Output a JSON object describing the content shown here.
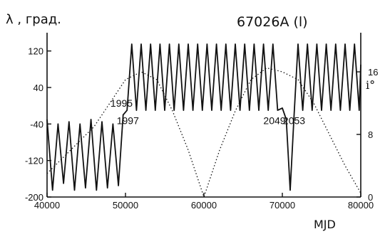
{
  "chart_data": {
    "type": "line",
    "title": "67026A (l)",
    "ylabel": "λ , град.",
    "xlabel": "MJD",
    "y2label": "i°",
    "xlim": [
      40000,
      80000
    ],
    "ylim": [
      -200,
      160
    ],
    "y2lim": [
      0,
      21
    ],
    "x_ticks": [
      40000,
      50000,
      60000,
      70000,
      80000
    ],
    "x_tick_labels": [
      "40000",
      "50000",
      "60000",
      "70000",
      "80000"
    ],
    "y_ticks": [
      120,
      40,
      -40,
      -120,
      -200
    ],
    "y_tick_labels": [
      "120",
      "40",
      "-40",
      "-120",
      "-200"
    ],
    "y2_ticks": [
      0,
      8,
      16
    ],
    "y2_tick_labels": [
      "0",
      "8",
      "16"
    ],
    "annotations": [
      {
        "text": "1995",
        "x": 49500,
        "y": -2
      },
      {
        "text": "1997",
        "x": 50300,
        "y": -40
      },
      {
        "text": "2049",
        "x": 69000,
        "y": -40
      },
      {
        "text": "2053",
        "x": 71500,
        "y": -40
      }
    ],
    "grid": false,
    "series": [
      {
        "style": "solid",
        "axis": "left",
        "x": [
          40000,
          40700,
          41400,
          42100,
          42800,
          43500,
          44200,
          44900,
          45600,
          46300,
          47000,
          47700,
          48400,
          49100,
          49700,
          50200,
          50800,
          51400,
          52000,
          52600,
          53200,
          53800,
          54400,
          55000,
          55600,
          56200,
          56800,
          57400,
          58000,
          58600,
          59200,
          59800,
          60400,
          61000,
          61600,
          62200,
          62800,
          63400,
          64000,
          64600,
          65200,
          65800,
          66400,
          67000,
          67600,
          68200,
          68800,
          69400,
          70000,
          70500,
          71000,
          71500,
          72000,
          72600,
          73200,
          73800,
          74400,
          75000,
          75600,
          76200,
          76800,
          77400,
          78000,
          78600,
          79200,
          79800,
          80000
        ],
        "y": [
          -30,
          -185,
          -40,
          -170,
          -35,
          -185,
          -40,
          -180,
          -30,
          -185,
          -35,
          -180,
          -40,
          -175,
          -20,
          -10,
          135,
          -10,
          135,
          -10,
          135,
          -10,
          135,
          -10,
          135,
          -10,
          135,
          -10,
          135,
          -10,
          135,
          -10,
          135,
          -10,
          135,
          -10,
          135,
          -10,
          135,
          -10,
          135,
          -10,
          135,
          -10,
          135,
          -10,
          135,
          -10,
          -5,
          -30,
          -185,
          -20,
          135,
          -10,
          135,
          -10,
          135,
          -10,
          135,
          -10,
          135,
          -10,
          135,
          -10,
          135,
          -10,
          90
        ]
      },
      {
        "style": "dotted",
        "axis": "right",
        "x": [
          40000,
          42000,
          44000,
          46000,
          48000,
          50000,
          52000,
          54000,
          56000,
          58000,
          60000,
          62000,
          64000,
          66000,
          68000,
          70000,
          72000,
          74000,
          76000,
          78000,
          80000
        ],
        "y": [
          3,
          5,
          7,
          9,
          12,
          15,
          16,
          15,
          11,
          6,
          0,
          6,
          11,
          15,
          16.5,
          16,
          15,
          12,
          8,
          4,
          0.5
        ]
      }
    ]
  }
}
